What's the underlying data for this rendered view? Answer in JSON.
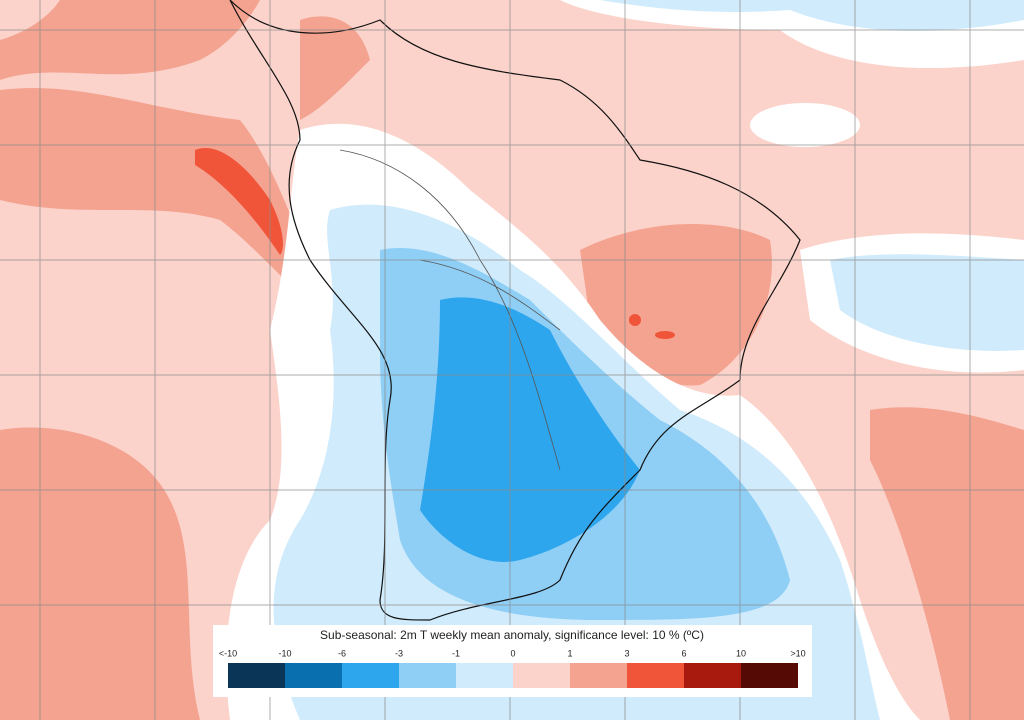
{
  "legend": {
    "title": "Sub-seasonal: 2m T weekly mean anomaly, significance level: 10 % (ºC)",
    "labels": [
      "<-10",
      "-10",
      "-6",
      "-3",
      "-1",
      "0",
      "1",
      "3",
      "6",
      "10",
      ">10"
    ],
    "colors": [
      "#0b3556",
      "#0a6fae",
      "#2ea6ee",
      "#8fcff6",
      "#d0ebfb",
      "#fbd3cb",
      "#f5a391",
      "#f0553a",
      "#a8190e",
      "#560a05"
    ]
  }
}
